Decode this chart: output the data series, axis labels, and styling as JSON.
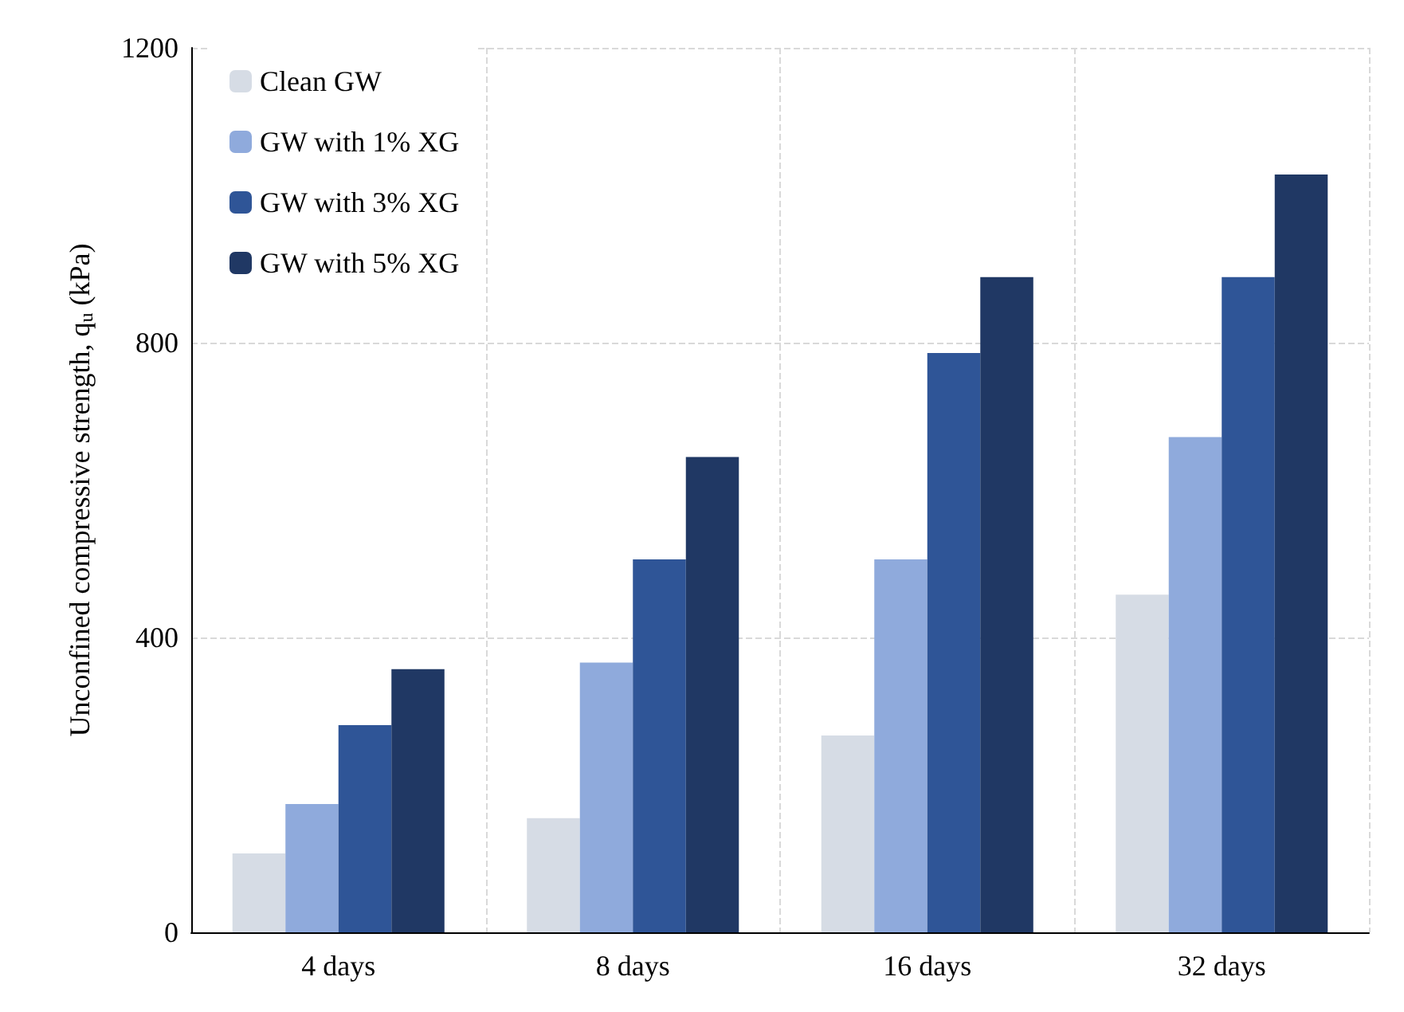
{
  "chart_data": {
    "type": "bar",
    "categories": [
      "4 days",
      "8 days",
      "16 days",
      "32 days"
    ],
    "series": [
      {
        "name": "Clean GW",
        "color": "#d6dce5",
        "values": [
          107,
          155,
          267,
          458
        ]
      },
      {
        "name": "GW with 1% XG",
        "color": "#8faadc",
        "values": [
          174,
          366,
          506,
          672
        ]
      },
      {
        "name": "GW with 3% XG",
        "color": "#2f5597",
        "values": [
          281,
          506,
          786,
          889
        ]
      },
      {
        "name": "GW with 5% XG",
        "color": "#203864",
        "values": [
          357,
          645,
          889,
          1028
        ]
      }
    ],
    "ylabel": "Unconfined compressive strength, q$_{u}$ (kPa)",
    "ylim": [
      0,
      1200
    ],
    "yticks": [
      0,
      400,
      800,
      1200
    ],
    "grid": true,
    "legend": "top left"
  }
}
